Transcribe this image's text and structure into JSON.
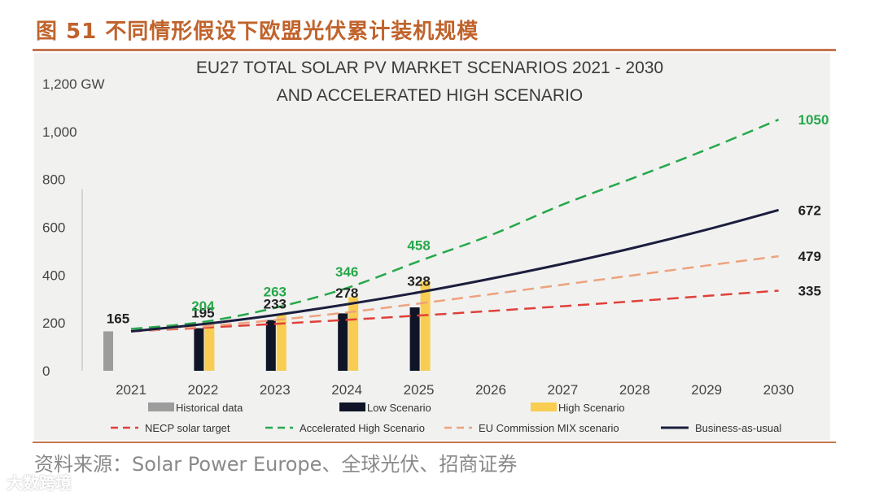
{
  "figure": {
    "title": "图 51 不同情形假设下欧盟光伏累计装机规模",
    "source": "资料来源：Solar Power Europe、全球光伏、招商证券",
    "watermark": "大数跨境"
  },
  "colors": {
    "accent": "#c0632c",
    "historical": "#9c9c9c",
    "low": "#0f1527",
    "high": "#f8cd52",
    "necp": "#e0403a",
    "accelerated": "#26a84a",
    "commission": "#eda27d",
    "bau": "#1b1e3d"
  },
  "chart_data": {
    "type": "bar",
    "title": "EU27 TOTAL SOLAR PV MARKET SCENARIOS 2021 - 2030",
    "subtitle": "AND ACCELERATED HIGH SCENARIO",
    "ylabel": "GW",
    "xlabel": "",
    "ylim": [
      0,
      1200
    ],
    "yticks": [
      0,
      200,
      400,
      600,
      800,
      1000,
      1200
    ],
    "ytick_labels": [
      "0",
      "200",
      "400",
      "600",
      "800",
      "1,000",
      "1,200 GW"
    ],
    "categories": [
      "2021",
      "2022",
      "2023",
      "2024",
      "2025",
      "2026",
      "2027",
      "2028",
      "2029",
      "2030"
    ],
    "bars": [
      {
        "name": "Historical data",
        "values": [
          165,
          null,
          null,
          null,
          null,
          null,
          null,
          null,
          null,
          null
        ]
      },
      {
        "name": "Low Scenario",
        "values": [
          null,
          178,
          212,
          240,
          265,
          null,
          null,
          null,
          null,
          null
        ]
      },
      {
        "name": "High Scenario",
        "values": [
          null,
          195,
          233,
          308,
          375,
          null,
          null,
          null,
          null,
          null
        ]
      }
    ],
    "lines": [
      {
        "name": "NECP solar target",
        "style": "dashed",
        "values": [
          165,
          180,
          196,
          213,
          231,
          250,
          270,
          291,
          313,
          335
        ]
      },
      {
        "name": "Accelerated High Scenario",
        "style": "dashed",
        "values": [
          175,
          204,
          263,
          346,
          458,
          567,
          695,
          808,
          925,
          1050
        ]
      },
      {
        "name": "EU Commission MIX scenario",
        "style": "dashed",
        "values": [
          165,
          185,
          212,
          244,
          281,
          320,
          360,
          400,
          440,
          479
        ]
      },
      {
        "name": "Business-as-usual",
        "style": "solid",
        "values": [
          165,
          195,
          233,
          278,
          328,
          385,
          447,
          515,
          590,
          672
        ]
      }
    ],
    "data_labels": [
      {
        "text": "165",
        "x": "2021",
        "y": 165,
        "series": "Historical data"
      },
      {
        "text": "195",
        "x": "2022",
        "y": 195,
        "series": "Business-as-usual"
      },
      {
        "text": "233",
        "x": "2023",
        "y": 233,
        "series": "Business-as-usual"
      },
      {
        "text": "278",
        "x": "2024",
        "y": 278,
        "series": "Business-as-usual"
      },
      {
        "text": "328",
        "x": "2025",
        "y": 328,
        "series": "Business-as-usual"
      },
      {
        "text": "204",
        "x": "2022",
        "y": 204,
        "series": "Accelerated High Scenario"
      },
      {
        "text": "263",
        "x": "2023",
        "y": 263,
        "series": "Accelerated High Scenario"
      },
      {
        "text": "346",
        "x": "2024",
        "y": 346,
        "series": "Accelerated High Scenario"
      },
      {
        "text": "458",
        "x": "2025",
        "y": 458,
        "series": "Accelerated High Scenario"
      },
      {
        "text": "1050",
        "x": "2030",
        "y": 1050,
        "series": "Accelerated High Scenario"
      },
      {
        "text": "672",
        "x": "2030",
        "y": 672,
        "series": "Business-as-usual"
      },
      {
        "text": "479",
        "x": "2030",
        "y": 479,
        "series": "EU Commission MIX scenario"
      },
      {
        "text": "335",
        "x": "2030",
        "y": 335,
        "series": "NECP solar target"
      }
    ],
    "legend": [
      {
        "label": "Historical data",
        "kind": "bar",
        "series": "Historical data"
      },
      {
        "label": "Low Scenario",
        "kind": "bar",
        "series": "Low Scenario"
      },
      {
        "label": "High Scenario",
        "kind": "bar",
        "series": "High Scenario"
      },
      {
        "label": "NECP solar target",
        "kind": "dashed",
        "series": "NECP solar target"
      },
      {
        "label": "Accelerated High Scenario",
        "kind": "dashed",
        "series": "Accelerated High Scenario"
      },
      {
        "label": "EU Commission MIX scenario",
        "kind": "dashed",
        "series": "EU Commission MIX scenario"
      },
      {
        "label": "Business-as-usual",
        "kind": "solid",
        "series": "Business-as-usual"
      }
    ],
    "legend_position": "bottom",
    "grid": false
  }
}
